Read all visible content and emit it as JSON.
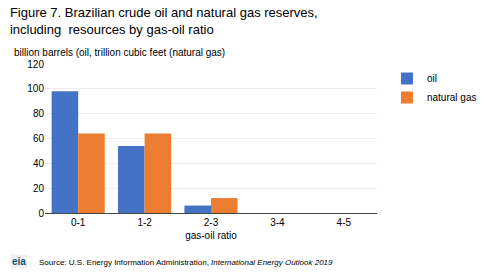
{
  "chart_data": {
    "type": "bar",
    "title": "Figure 7. Brazilian crude oil and natural gas reserves,",
    "subtitle": "including  resources by gas-oil ratio",
    "ylabel": "billion barrels (oil, trillion cubic feet (natural gas)",
    "xlabel": "gas-oil ratio",
    "categories": [
      "0-1",
      "1-2",
      "2-3",
      "3-4",
      "4-5"
    ],
    "series": [
      {
        "name": "oil",
        "color": "#4472C4",
        "values": [
          98,
          54,
          6,
          0,
          0
        ]
      },
      {
        "name": "natural gas",
        "color": "#ED7D31",
        "values": [
          64,
          64,
          12,
          0,
          0
        ]
      }
    ],
    "ylim": [
      0,
      120
    ],
    "yticks": [
      0,
      20,
      40,
      60,
      80,
      100,
      120
    ],
    "grid": true,
    "legend": "right",
    "annotations": [
      "eia",
      "Source: U.S. Energy Information Administration, ",
      "International Energy Outlook 2019"
    ]
  }
}
